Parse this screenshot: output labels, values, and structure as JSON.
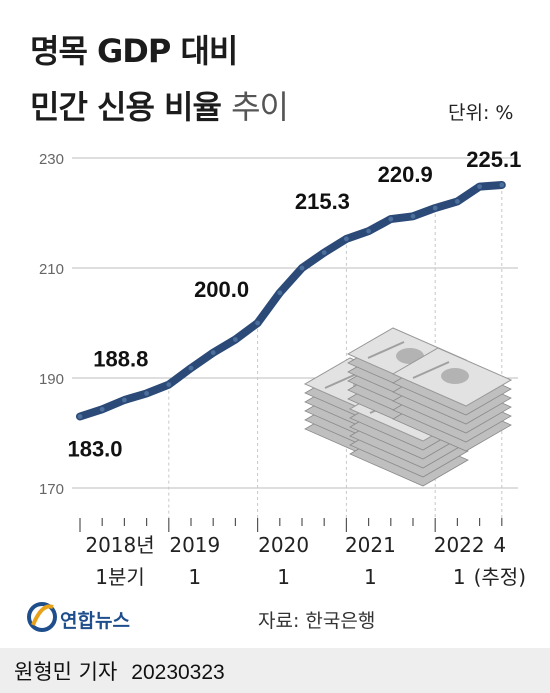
{
  "header": {
    "title_line1": "명목 GDP 대비",
    "title_line2_bold": "민간 신용 비율",
    "title_line2_light": "추이",
    "unit": "단위: %"
  },
  "chart_data": {
    "type": "line",
    "title": "명목 GDP 대비 민간 신용 비율 추이",
    "ylim": [
      165,
      232
    ],
    "yticks": [
      170,
      190,
      210,
      230
    ],
    "grid": true,
    "x": [
      "2018-Q1",
      "2018-Q2",
      "2018-Q3",
      "2018-Q4",
      "2019-Q1",
      "2019-Q2",
      "2019-Q3",
      "2019-Q4",
      "2020-Q1",
      "2020-Q2",
      "2020-Q3",
      "2020-Q4",
      "2021-Q1",
      "2021-Q2",
      "2021-Q3",
      "2021-Q4",
      "2022-Q1",
      "2022-Q2",
      "2022-Q3",
      "2022-Q4"
    ],
    "values": [
      183.0,
      184.3,
      186.0,
      187.2,
      188.8,
      191.8,
      194.6,
      197.0,
      200.0,
      205.5,
      210.0,
      212.8,
      215.3,
      216.7,
      218.9,
      219.4,
      220.9,
      222.1,
      224.8,
      225.1
    ],
    "labeled_points": [
      {
        "index": 0,
        "label": "183.0"
      },
      {
        "index": 4,
        "label": "188.8"
      },
      {
        "index": 8,
        "label": "200.0"
      },
      {
        "index": 12,
        "label": "215.3"
      },
      {
        "index": 16,
        "label": "220.9"
      },
      {
        "index": 19,
        "label": "225.1"
      }
    ],
    "xlabels": [
      {
        "index": 0,
        "line1": "2018년",
        "line2": "1분기"
      },
      {
        "index": 4,
        "line1": "2019",
        "line2": "1"
      },
      {
        "index": 8,
        "line1": "2020",
        "line2": "1"
      },
      {
        "index": 12,
        "line1": "2021",
        "line2": "1"
      },
      {
        "index": 16,
        "line1": "2022",
        "line2": "1"
      },
      {
        "index": 19,
        "line1": "4",
        "line2": "(추정)"
      }
    ],
    "line_color": "#2b4a77",
    "marker_color": "#4d6f9c"
  },
  "footer": {
    "source": "자료: 한국은행",
    "logo_text": "연합뉴스",
    "byline": "원형민 기자",
    "date": "20230323"
  }
}
